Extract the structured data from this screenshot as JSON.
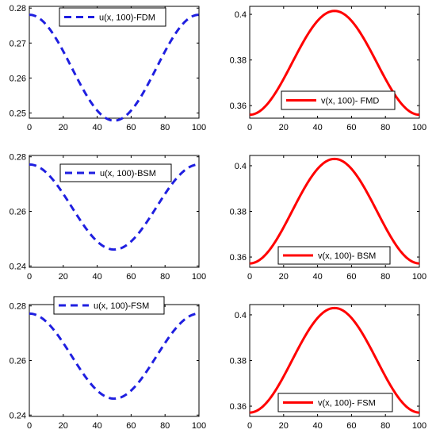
{
  "chart_data": [
    {
      "type": "line",
      "xlim": [
        0,
        100
      ],
      "ylim": [
        0.2485,
        0.2805
      ],
      "xticks": [
        0,
        20,
        40,
        60,
        80,
        100
      ],
      "yticks": [
        0.25,
        0.26,
        0.27,
        0.28
      ],
      "ytick_labels": [
        "0.25",
        "0.26",
        "0.27",
        "0.28"
      ],
      "grid": false,
      "legend": "top-center",
      "series": [
        {
          "name": "u(x, 100)-FDM",
          "color": "#1f1fe0",
          "style": "dashed",
          "min": 0.2478,
          "max": 0.2781,
          "peak_x": 50,
          "shape": "cosine-valley"
        }
      ]
    },
    {
      "type": "line",
      "xlim": [
        0,
        100
      ],
      "ylim": [
        0.3545,
        0.4035
      ],
      "xticks": [
        0,
        20,
        40,
        60,
        80,
        100
      ],
      "yticks": [
        0.36,
        0.38,
        0.4
      ],
      "ytick_labels": [
        "0.36",
        "0.38",
        "0.4"
      ],
      "grid": false,
      "legend": "bottom-center",
      "series": [
        {
          "name": "v(x, 100)- FMD",
          "color": "#ff0000",
          "style": "solid",
          "min": 0.356,
          "max": 0.4015,
          "peak_x": 50,
          "shape": "cosine-hill"
        }
      ]
    },
    {
      "type": "line",
      "xlim": [
        0,
        100
      ],
      "ylim": [
        0.2395,
        0.2805
      ],
      "xticks": [
        0,
        20,
        40,
        60,
        80,
        100
      ],
      "yticks": [
        0.24,
        0.26,
        0.28
      ],
      "ytick_labels": [
        "0.24",
        "0.26",
        "0.28"
      ],
      "grid": false,
      "legend": "top-center",
      "series": [
        {
          "name": "u(x, 100)-BSM",
          "color": "#1f1fe0",
          "style": "dashed",
          "min": 0.246,
          "max": 0.2772,
          "peak_x": 50,
          "shape": "cosine-valley"
        }
      ]
    },
    {
      "type": "line",
      "xlim": [
        0,
        100
      ],
      "ylim": [
        0.3555,
        0.4045
      ],
      "xticks": [
        0,
        20,
        40,
        60,
        80,
        100
      ],
      "yticks": [
        0.36,
        0.38,
        0.4
      ],
      "ytick_labels": [
        "0.36",
        "0.38",
        "0.4"
      ],
      "grid": false,
      "legend": "bottom-center",
      "series": [
        {
          "name": "v(x, 100)- BSM",
          "color": "#ff0000",
          "style": "solid",
          "min": 0.3572,
          "max": 0.403,
          "peak_x": 50,
          "shape": "cosine-hill"
        }
      ]
    },
    {
      "type": "line",
      "xlim": [
        0,
        100
      ],
      "ylim": [
        0.2395,
        0.2805
      ],
      "xticks": [
        0,
        20,
        40,
        60,
        80,
        100
      ],
      "yticks": [
        0.24,
        0.26,
        0.28
      ],
      "ytick_labels": [
        "0.24",
        "0.26",
        "0.28"
      ],
      "grid": false,
      "legend": "top-center",
      "series": [
        {
          "name": "u(x, 100)-FSM",
          "color": "#1f1fe0",
          "style": "dashed",
          "min": 0.246,
          "max": 0.2772,
          "peak_x": 50,
          "shape": "cosine-valley"
        }
      ]
    },
    {
      "type": "line",
      "xlim": [
        0,
        100
      ],
      "ylim": [
        0.3555,
        0.4045
      ],
      "xticks": [
        0,
        20,
        40,
        60,
        80,
        100
      ],
      "yticks": [
        0.36,
        0.38,
        0.4
      ],
      "ytick_labels": [
        "0.36",
        "0.38",
        "0.4"
      ],
      "grid": false,
      "legend": "bottom-center",
      "series": [
        {
          "name": "v(x, 100)- FSM",
          "color": "#ff0000",
          "style": "solid",
          "min": 0.3572,
          "max": 0.403,
          "peak_x": 50,
          "shape": "cosine-hill"
        }
      ]
    }
  ]
}
